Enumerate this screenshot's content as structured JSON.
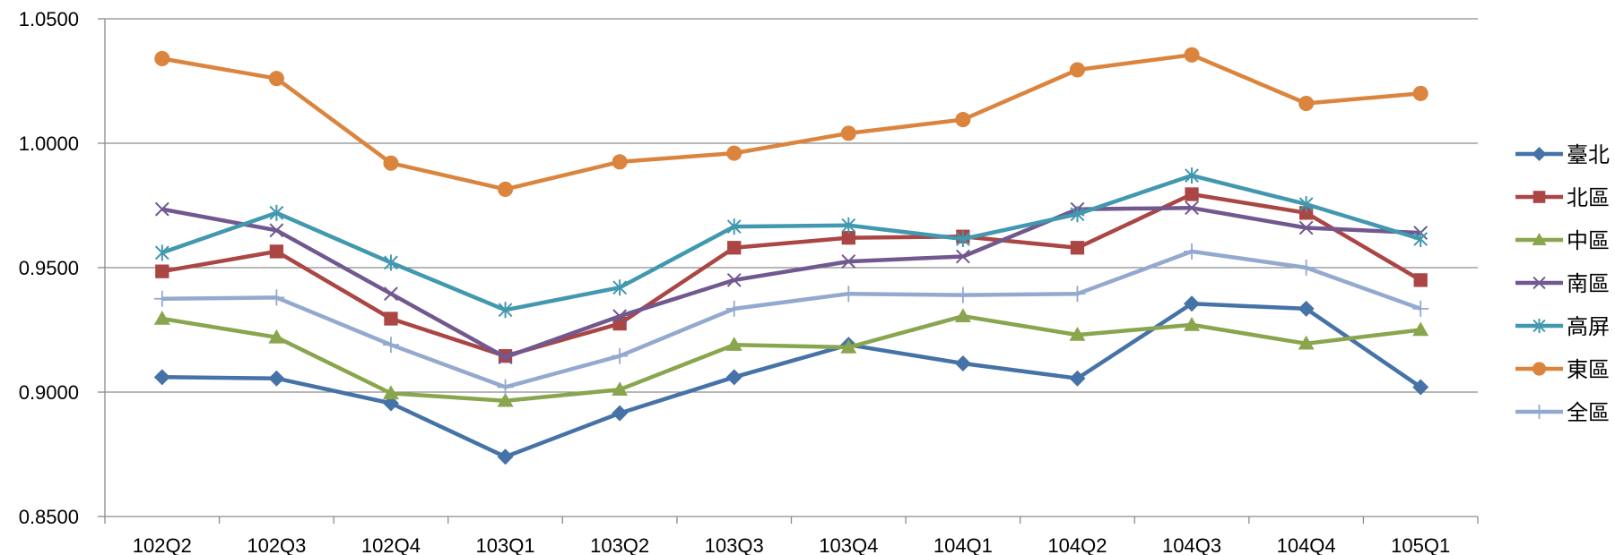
{
  "chart_data": {
    "type": "line",
    "title": "",
    "xlabel": "",
    "ylabel": "",
    "categories": [
      "102Q2",
      "102Q3",
      "102Q4",
      "103Q1",
      "103Q2",
      "103Q3",
      "103Q4",
      "104Q1",
      "104Q2",
      "104Q3",
      "104Q4",
      "105Q1"
    ],
    "ylim": [
      0.85,
      1.05
    ],
    "yticks": [
      "1.0500",
      "1.0000",
      "0.9500",
      "0.9000",
      "0.8500"
    ],
    "ytick_values": [
      1.05,
      1.0,
      0.95,
      0.9,
      0.85
    ],
    "grid": "horizontal",
    "legend_position": "right",
    "series": [
      {
        "name": "臺北",
        "color": "#4572A7",
        "marker": "diamond",
        "values": [
          0.906,
          0.9055,
          0.8955,
          0.874,
          0.8915,
          0.906,
          0.919,
          0.9115,
          0.9055,
          0.9355,
          0.9335,
          0.902
        ]
      },
      {
        "name": "北區",
        "color": "#AA4643",
        "marker": "square",
        "values": [
          0.9485,
          0.9565,
          0.9295,
          0.9145,
          0.9275,
          0.958,
          0.962,
          0.9625,
          0.958,
          0.9795,
          0.972,
          0.945
        ]
      },
      {
        "name": "中區",
        "color": "#89A54E",
        "marker": "triangle",
        "values": [
          0.9295,
          0.922,
          0.8995,
          0.8965,
          0.901,
          0.919,
          0.918,
          0.9305,
          0.923,
          0.927,
          0.9195,
          0.925
        ]
      },
      {
        "name": "南區",
        "color": "#71588F",
        "marker": "x",
        "values": [
          0.9735,
          0.965,
          0.9395,
          0.914,
          0.9305,
          0.945,
          0.9525,
          0.9545,
          0.9735,
          0.974,
          0.966,
          0.964
        ]
      },
      {
        "name": "高屏",
        "color": "#4198AF",
        "marker": "star",
        "values": [
          0.956,
          0.972,
          0.952,
          0.933,
          0.942,
          0.9665,
          0.967,
          0.9615,
          0.9715,
          0.987,
          0.9755,
          0.9615
        ]
      },
      {
        "name": "東區",
        "color": "#DB843D",
        "marker": "circle",
        "values": [
          1.034,
          1.026,
          0.992,
          0.9815,
          0.9925,
          0.996,
          1.004,
          1.0095,
          1.0295,
          1.0355,
          1.016,
          1.02
        ]
      },
      {
        "name": "全區",
        "color": "#93A9CF",
        "marker": "plus",
        "values": [
          0.9375,
          0.938,
          0.919,
          0.902,
          0.9145,
          0.9335,
          0.9395,
          0.939,
          0.9395,
          0.9565,
          0.95,
          0.9335
        ]
      }
    ]
  }
}
